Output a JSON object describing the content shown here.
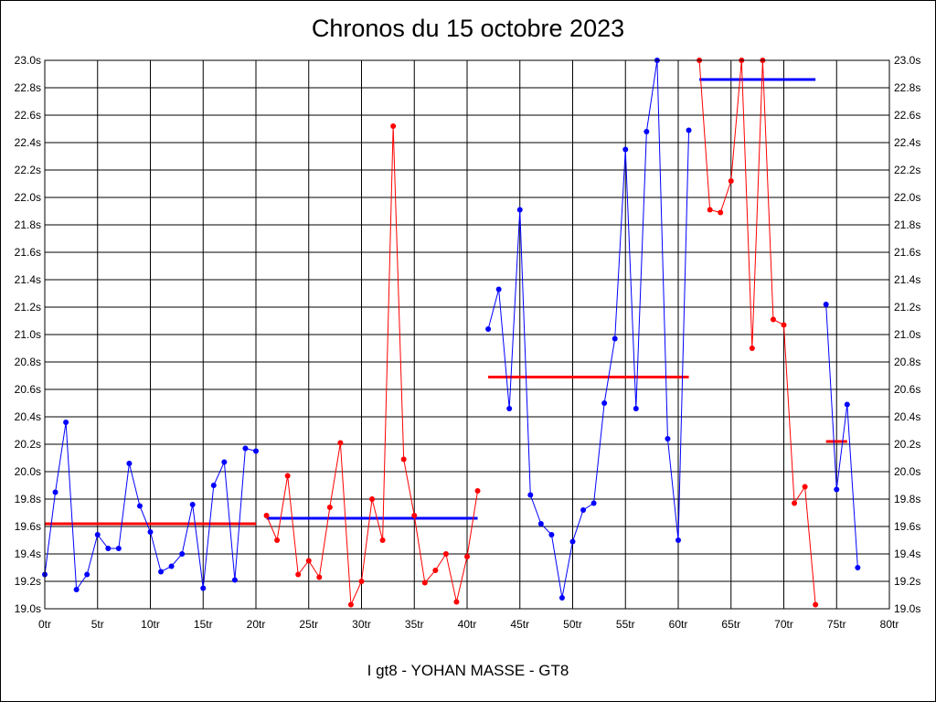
{
  "title": "Chronos du 15 octobre 2023",
  "footer": "I gt8 - YOHAN MASSE - GT8",
  "chart_data": {
    "type": "line",
    "title": "Chronos du 15 octobre 2023",
    "xlabel": "",
    "ylabel": "",
    "xlim": [
      0,
      80
    ],
    "ylim": [
      19.0,
      23.0
    ],
    "grid": true,
    "x_ticks": [
      {
        "v": 0,
        "label": "0tr"
      },
      {
        "v": 5,
        "label": "5tr"
      },
      {
        "v": 10,
        "label": "10tr"
      },
      {
        "v": 15,
        "label": "15tr"
      },
      {
        "v": 20,
        "label": "20tr"
      },
      {
        "v": 25,
        "label": "25tr"
      },
      {
        "v": 30,
        "label": "30tr"
      },
      {
        "v": 35,
        "label": "35tr"
      },
      {
        "v": 40,
        "label": "40tr"
      },
      {
        "v": 45,
        "label": "45tr"
      },
      {
        "v": 50,
        "label": "50tr"
      },
      {
        "v": 55,
        "label": "55tr"
      },
      {
        "v": 60,
        "label": "60tr"
      },
      {
        "v": 65,
        "label": "65tr"
      },
      {
        "v": 70,
        "label": "70tr"
      },
      {
        "v": 75,
        "label": "75tr"
      },
      {
        "v": 80,
        "label": "80tr"
      }
    ],
    "y_ticks": [
      {
        "v": 19.0,
        "label": "19.0s"
      },
      {
        "v": 19.2,
        "label": "19.2s"
      },
      {
        "v": 19.4,
        "label": "19.4s"
      },
      {
        "v": 19.6,
        "label": "19.6s"
      },
      {
        "v": 19.8,
        "label": "19.8s"
      },
      {
        "v": 20.0,
        "label": "20.0s"
      },
      {
        "v": 20.2,
        "label": "20.2s"
      },
      {
        "v": 20.4,
        "label": "20.4s"
      },
      {
        "v": 20.6,
        "label": "20.6s"
      },
      {
        "v": 20.8,
        "label": "20.8s"
      },
      {
        "v": 21.0,
        "label": "21.0s"
      },
      {
        "v": 21.2,
        "label": "21.2s"
      },
      {
        "v": 21.4,
        "label": "21.4s"
      },
      {
        "v": 21.6,
        "label": "21.6s"
      },
      {
        "v": 21.8,
        "label": "21.8s"
      },
      {
        "v": 22.0,
        "label": "22.0s"
      },
      {
        "v": 22.2,
        "label": "22.2s"
      },
      {
        "v": 22.4,
        "label": "22.4s"
      },
      {
        "v": 22.6,
        "label": "22.6s"
      },
      {
        "v": 22.8,
        "label": "22.8s"
      },
      {
        "v": 23.0,
        "label": "23.0s"
      }
    ],
    "series": [
      {
        "color": "#0000ff",
        "x": [
          0,
          1,
          2,
          3,
          4,
          5,
          6,
          7,
          8,
          9,
          10,
          11,
          12,
          13,
          14,
          15,
          16,
          17,
          18,
          19,
          20
        ],
        "y": [
          19.25,
          19.85,
          20.36,
          19.14,
          19.25,
          19.54,
          19.44,
          19.44,
          20.06,
          19.75,
          19.56,
          19.27,
          19.31,
          19.4,
          19.76,
          19.15,
          19.9,
          20.07,
          19.21,
          20.17,
          20.15
        ],
        "average": {
          "x0": 0,
          "x1": 20,
          "y": 19.62,
          "color": "#ff0000"
        }
      },
      {
        "color": "#ff0000",
        "x": [
          21,
          22,
          23,
          24,
          25,
          26,
          27,
          28,
          29,
          30,
          31,
          32,
          33,
          34,
          35,
          36,
          37,
          38,
          39,
          40,
          41
        ],
        "y": [
          19.68,
          19.5,
          19.97,
          19.25,
          19.35,
          19.23,
          19.74,
          20.21,
          19.03,
          19.2,
          19.8,
          19.5,
          22.52,
          20.09,
          19.68,
          19.19,
          19.28,
          19.4,
          19.05,
          19.38,
          19.86
        ],
        "average": {
          "x0": 21,
          "x1": 41,
          "y": 19.66,
          "color": "#0000ff"
        }
      },
      {
        "color": "#0000ff",
        "x": [
          42,
          43,
          44,
          45,
          46,
          47,
          48,
          49,
          50,
          51,
          52,
          53,
          54,
          55,
          56,
          57,
          58,
          59,
          60,
          61
        ],
        "y": [
          21.04,
          21.33,
          20.46,
          21.91,
          19.83,
          19.62,
          19.54,
          19.08,
          19.49,
          19.72,
          19.77,
          20.5,
          20.97,
          22.35,
          20.46,
          22.48,
          23.0,
          20.24,
          19.5,
          22.49
        ],
        "average": {
          "x0": 42,
          "x1": 61,
          "y": 20.69,
          "color": "#ff0000"
        }
      },
      {
        "color": "#ff0000",
        "x": [
          62,
          63,
          64,
          65,
          66,
          67,
          68,
          69,
          70,
          71,
          72,
          73
        ],
        "y": [
          23.0,
          21.91,
          21.89,
          22.12,
          23.0,
          20.9,
          23.0,
          21.11,
          21.07,
          19.77,
          19.89,
          19.03
        ],
        "average": {
          "x0": 62,
          "x1": 73,
          "y": 22.86,
          "color": "#0000ff"
        }
      },
      {
        "color": "#0000ff",
        "x": [
          74,
          75,
          76,
          77
        ],
        "y": [
          21.22,
          19.87,
          20.49,
          19.3
        ],
        "average": {
          "x0": 74,
          "x1": 76,
          "y": 20.22,
          "color": "#ff0000"
        }
      }
    ]
  }
}
